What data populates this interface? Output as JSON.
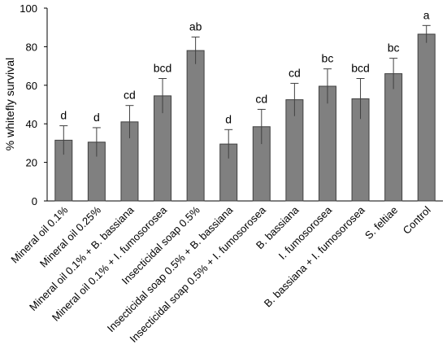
{
  "chart_data": {
    "type": "bar",
    "title": "",
    "xlabel": "",
    "ylabel": "% whitefly survival",
    "ylim": [
      0,
      100
    ],
    "yticks": [
      0,
      20,
      40,
      60,
      80,
      100
    ],
    "grid": false,
    "bar_color": "#808080",
    "categories": [
      "Mineral oil 0.1%",
      "Mineral oil 0.25%",
      "Mineral oil 0.1% + B. bassiana",
      "Mineral oil 0.1% + I. fumosorosea",
      "Insecticidal soap 0.5%",
      "Insecticidal soap 0.5% + B. bassiana",
      "Insecticidal soap 0.5% + I. fumosorosea",
      "B. bassiana",
      "I. fumosorosea",
      "B. bassiana + I. fumosorosea",
      "S. feltiae",
      "Control"
    ],
    "values": [
      31.5,
      30.5,
      41,
      54.5,
      78,
      29.5,
      38.5,
      52.5,
      59.5,
      53,
      66,
      86.5
    ],
    "errors": [
      7.5,
      7.5,
      8.5,
      9,
      7,
      7.5,
      9,
      8.5,
      9,
      10.5,
      8,
      4.5
    ],
    "significance_letters": [
      "d",
      "d",
      "cd",
      "bcd",
      "ab",
      "d",
      "cd",
      "cd",
      "bc",
      "bcd",
      "bc",
      "a"
    ]
  }
}
